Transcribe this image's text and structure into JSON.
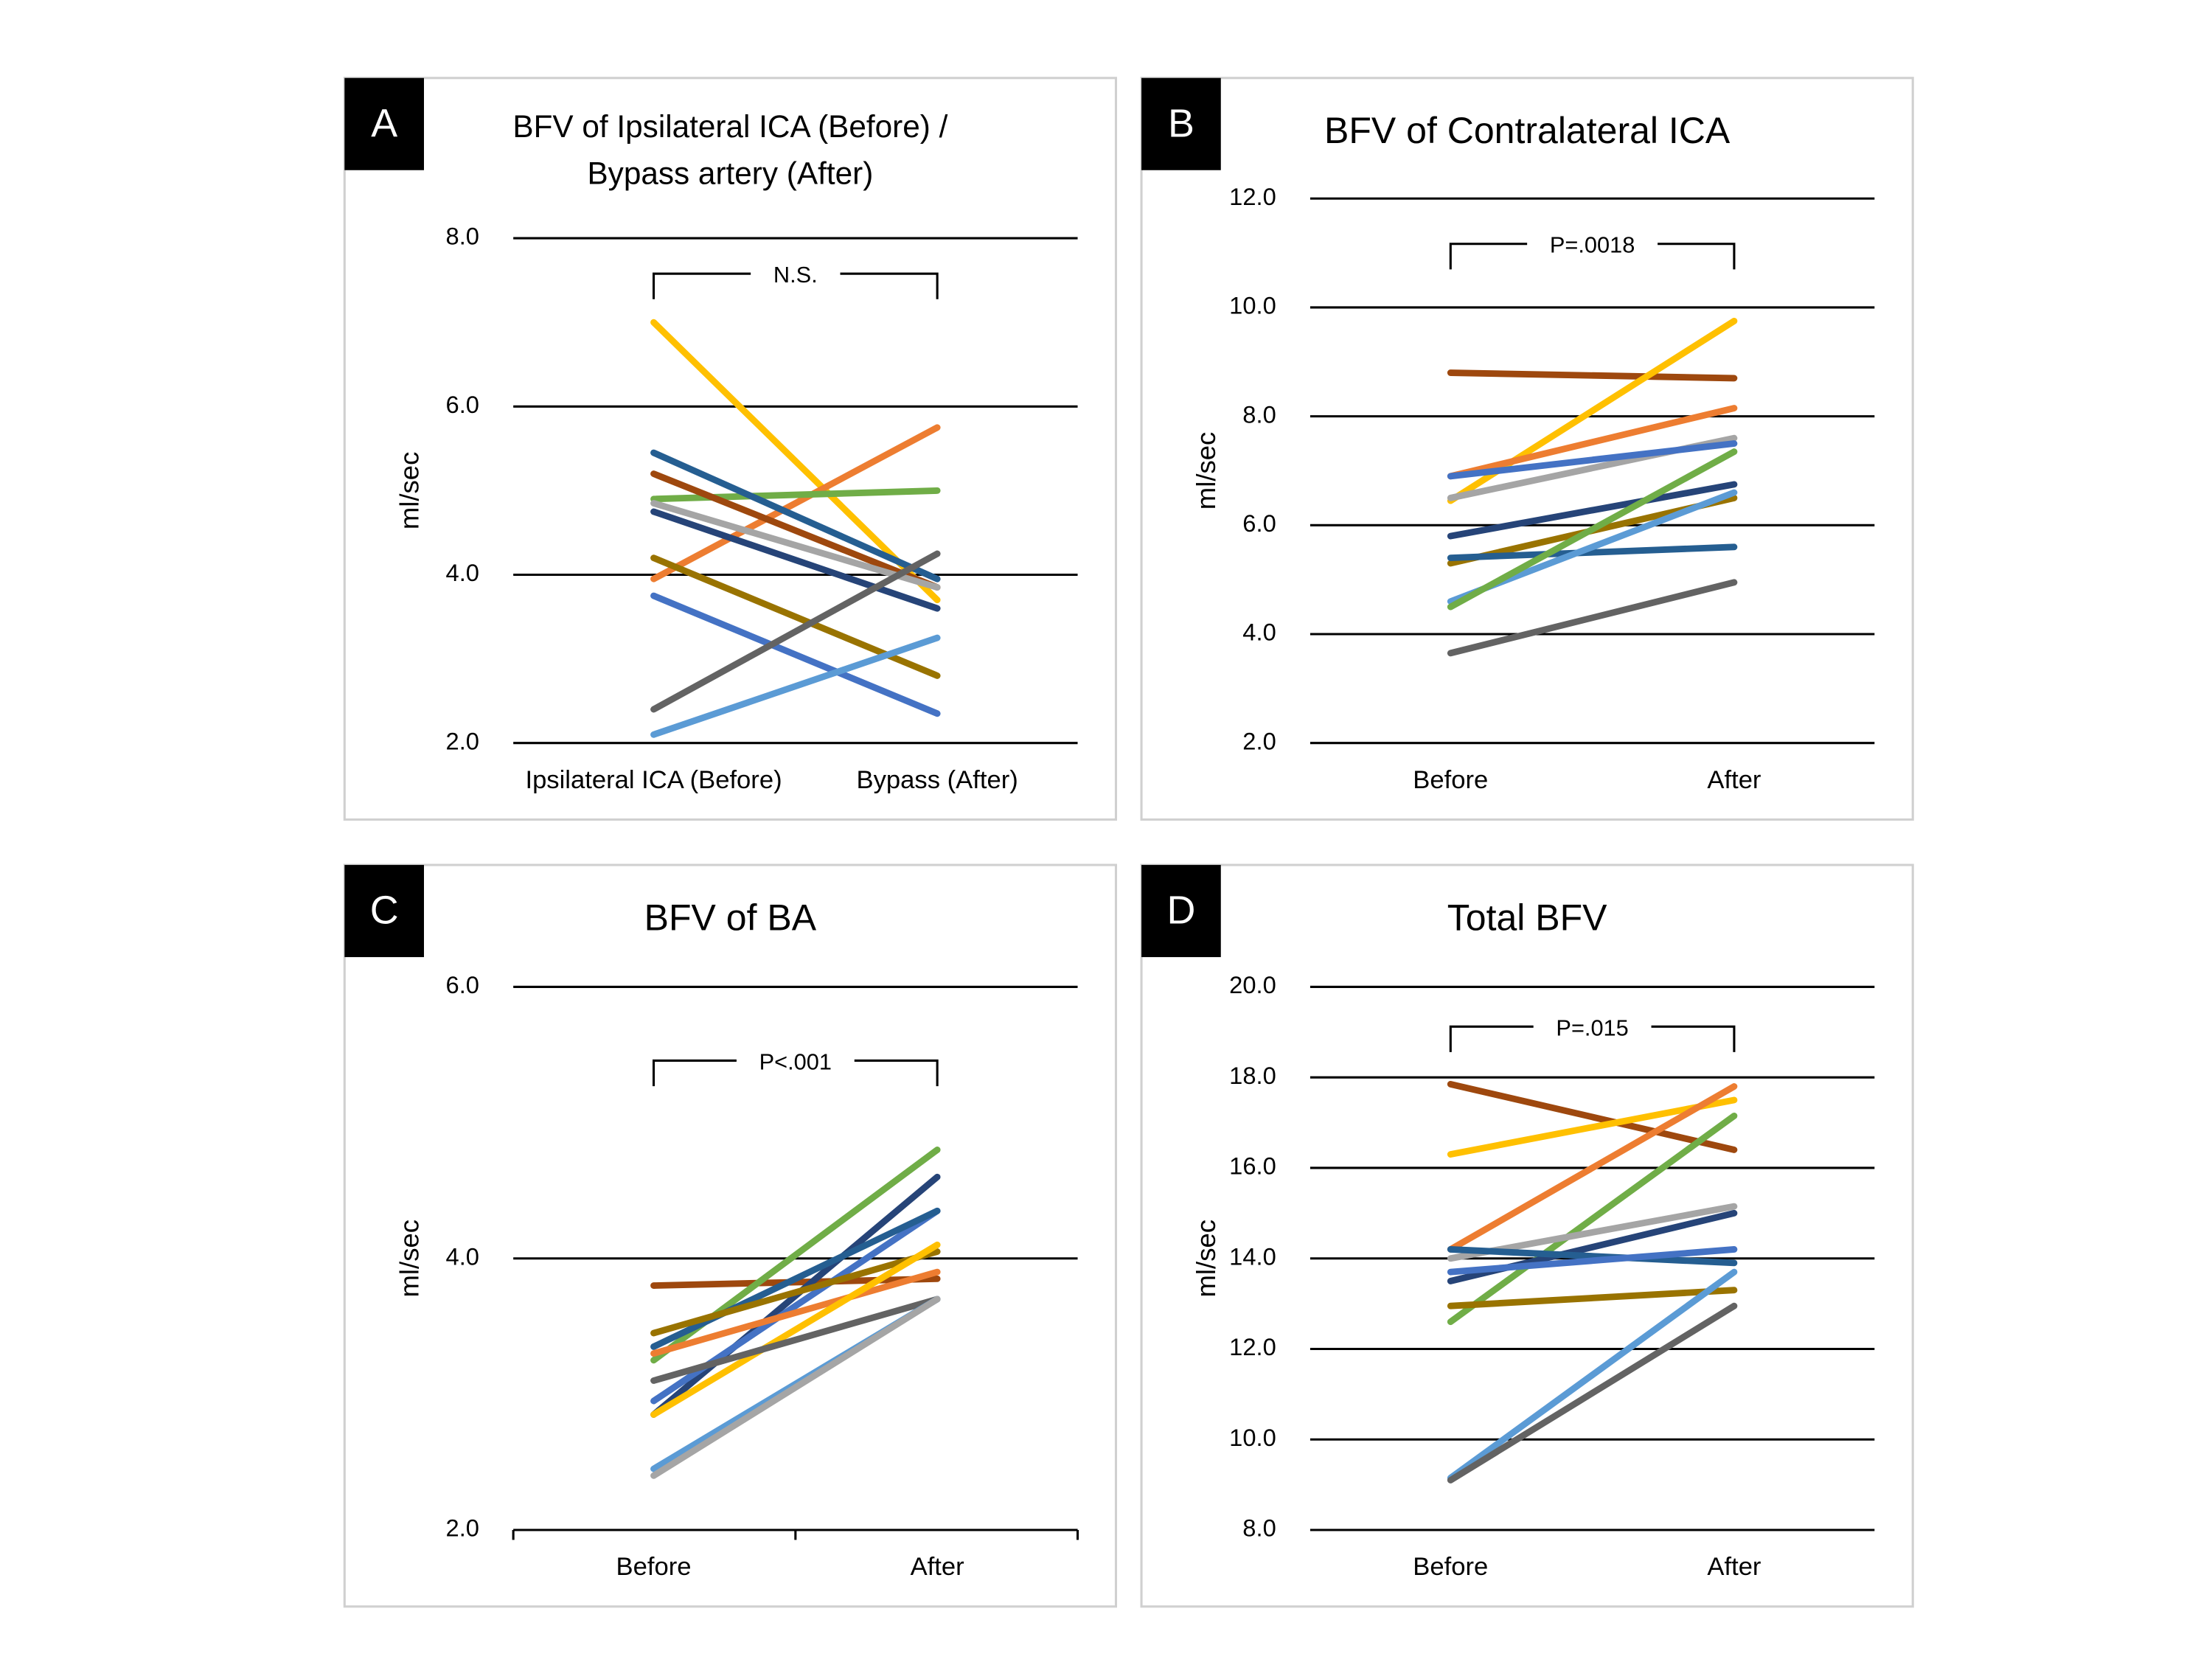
{
  "chart_data": [
    {
      "type": "line",
      "panel": "A",
      "title": [
        "BFV of Ipsilateral ICA (Before) /",
        "Bypass artery (After)"
      ],
      "ylabel": "ml/sec",
      "annotation": "N.S.",
      "categories": [
        "Ipsilateral ICA (Before)",
        "Bypass (After)"
      ],
      "ylim": [
        2,
        8
      ],
      "yticks": [
        {
          "value": 2,
          "label": "2.0"
        },
        {
          "value": 4,
          "label": "4.0"
        },
        {
          "value": 6,
          "label": "6.0"
        },
        {
          "value": 8,
          "label": "8.0"
        }
      ],
      "grid": true,
      "series": [
        {
          "color": "#ffc000",
          "values": [
            7.0,
            3.7
          ]
        },
        {
          "color": "#ed7d31",
          "values": [
            3.95,
            5.75
          ]
        },
        {
          "color": "#70ad47",
          "values": [
            4.9,
            5.0
          ]
        },
        {
          "color": "#255e91",
          "values": [
            5.45,
            3.95
          ]
        },
        {
          "color": "#9e480e",
          "values": [
            5.2,
            3.85
          ]
        },
        {
          "color": "#a5a5a5",
          "values": [
            4.85,
            3.85
          ]
        },
        {
          "color": "#264478",
          "values": [
            4.75,
            3.6
          ]
        },
        {
          "color": "#997300",
          "values": [
            4.2,
            2.8
          ]
        },
        {
          "color": "#4472c4",
          "values": [
            3.75,
            2.35
          ]
        },
        {
          "color": "#636363",
          "values": [
            2.4,
            4.25
          ]
        },
        {
          "color": "#5b9bd5",
          "values": [
            2.1,
            3.25
          ]
        }
      ]
    },
    {
      "type": "line",
      "panel": "B",
      "title": "BFV of Contralateral ICA",
      "ylabel": "ml/sec",
      "annotation": "P=.0018",
      "categories": [
        "Before",
        "After"
      ],
      "ylim": [
        2,
        12
      ],
      "yticks": [
        {
          "value": 2,
          "label": "2.0"
        },
        {
          "value": 4,
          "label": "4.0"
        },
        {
          "value": 6,
          "label": "6.0"
        },
        {
          "value": 8,
          "label": "8.0"
        },
        {
          "value": 10,
          "label": "10.0"
        },
        {
          "value": 12,
          "label": "12.0"
        }
      ],
      "grid": true,
      "series": [
        {
          "color": "#9e480e",
          "values": [
            8.8,
            8.7
          ]
        },
        {
          "color": "#ffc000",
          "values": [
            6.45,
            9.75
          ]
        },
        {
          "color": "#ed7d31",
          "values": [
            6.9,
            8.15
          ]
        },
        {
          "color": "#a5a5a5",
          "values": [
            6.5,
            7.6
          ]
        },
        {
          "color": "#4472c4",
          "values": [
            6.9,
            7.5
          ]
        },
        {
          "color": "#264478",
          "values": [
            5.8,
            6.75
          ]
        },
        {
          "color": "#997300",
          "values": [
            5.3,
            6.5
          ]
        },
        {
          "color": "#255e91",
          "values": [
            5.4,
            5.6
          ]
        },
        {
          "color": "#5b9bd5",
          "values": [
            4.6,
            6.6
          ]
        },
        {
          "color": "#70ad47",
          "values": [
            4.5,
            7.35
          ]
        },
        {
          "color": "#636363",
          "values": [
            3.65,
            4.95
          ]
        }
      ]
    },
    {
      "type": "line",
      "panel": "C",
      "title": "BFV of BA",
      "ylabel": "ml/sec",
      "annotation": "P<.001",
      "categories": [
        "Before",
        "After"
      ],
      "ylim": [
        2,
        6
      ],
      "yticks": [
        {
          "value": 2,
          "label": "2.0"
        },
        {
          "value": 4,
          "label": "4.0"
        },
        {
          "value": 6,
          "label": "6.0"
        }
      ],
      "grid": true,
      "series": [
        {
          "color": "#9e480e",
          "values": [
            3.8,
            3.85
          ]
        },
        {
          "color": "#70ad47",
          "values": [
            3.25,
            4.8
          ]
        },
        {
          "color": "#264478",
          "values": [
            2.85,
            4.6
          ]
        },
        {
          "color": "#4472c4",
          "values": [
            2.95,
            4.35
          ]
        },
        {
          "color": "#255e91",
          "values": [
            3.35,
            4.35
          ]
        },
        {
          "color": "#997300",
          "values": [
            3.45,
            4.05
          ]
        },
        {
          "color": "#ed7d31",
          "values": [
            3.3,
            3.9
          ]
        },
        {
          "color": "#ffc000",
          "values": [
            2.85,
            4.1
          ]
        },
        {
          "color": "#636363",
          "values": [
            3.1,
            3.7
          ]
        },
        {
          "color": "#5b9bd5",
          "values": [
            2.45,
            3.7
          ]
        },
        {
          "color": "#a5a5a5",
          "values": [
            2.4,
            3.7
          ]
        }
      ]
    },
    {
      "type": "line",
      "panel": "D",
      "title": "Total BFV",
      "ylabel": "ml/sec",
      "annotation": "P=.015",
      "categories": [
        "Before",
        "After"
      ],
      "ylim": [
        8,
        20
      ],
      "yticks": [
        {
          "value": 8,
          "label": "8.0"
        },
        {
          "value": 10,
          "label": "10.0"
        },
        {
          "value": 12,
          "label": "12.0"
        },
        {
          "value": 14,
          "label": "14.0"
        },
        {
          "value": 16,
          "label": "16.0"
        },
        {
          "value": 18,
          "label": "18.0"
        },
        {
          "value": 20,
          "label": "20.0"
        }
      ],
      "grid": true,
      "series": [
        {
          "color": "#9e480e",
          "values": [
            17.85,
            16.4
          ]
        },
        {
          "color": "#ffc000",
          "values": [
            16.3,
            17.5
          ]
        },
        {
          "color": "#ed7d31",
          "values": [
            14.2,
            17.8
          ]
        },
        {
          "color": "#70ad47",
          "values": [
            12.6,
            17.15
          ]
        },
        {
          "color": "#a5a5a5",
          "values": [
            14.0,
            15.15
          ]
        },
        {
          "color": "#264478",
          "values": [
            13.5,
            15.0
          ]
        },
        {
          "color": "#255e91",
          "values": [
            14.2,
            13.9
          ]
        },
        {
          "color": "#4472c4",
          "values": [
            13.7,
            14.2
          ]
        },
        {
          "color": "#997300",
          "values": [
            12.95,
            13.3
          ]
        },
        {
          "color": "#5b9bd5",
          "values": [
            9.15,
            13.7
          ]
        },
        {
          "color": "#636363",
          "values": [
            9.1,
            12.95
          ]
        }
      ]
    }
  ]
}
